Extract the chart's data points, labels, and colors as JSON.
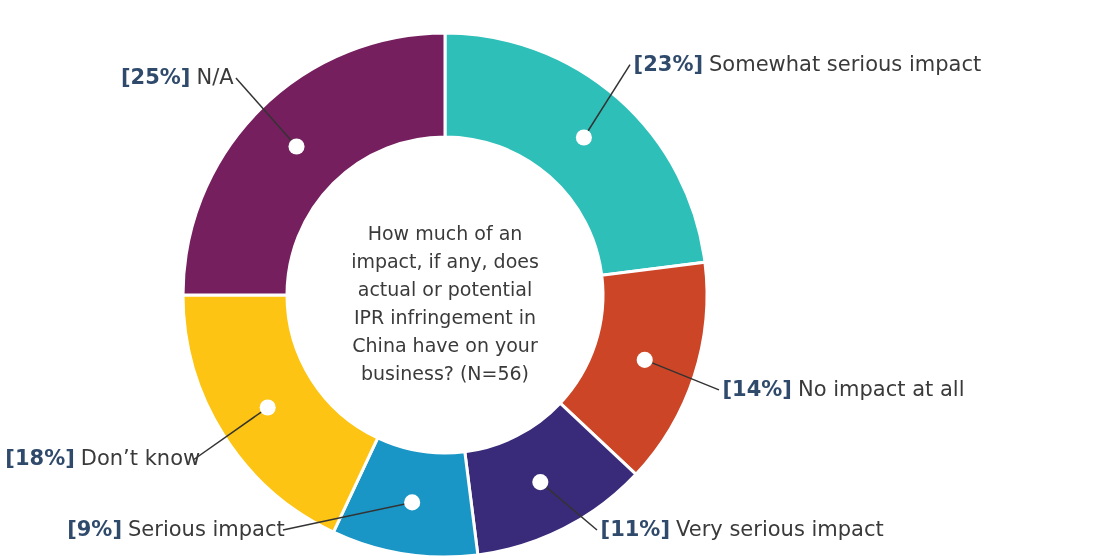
{
  "chart_data": {
    "type": "donut",
    "title": "How much of an impact, if any, does actual or potential IPR infringement in China have on your business? (N=56)",
    "categories": [
      "Somewhat serious impact",
      "No impact at all",
      "Very serious impact",
      "Serious impact",
      "Don’t know",
      "N/A"
    ],
    "values": [
      23,
      14,
      11,
      9,
      18,
      25
    ],
    "colors": [
      "#2ebfb9",
      "#cc4526",
      "#3a2a7a",
      "#1a96c6",
      "#fdc414",
      "#761f5e"
    ],
    "value_labels": [
      "[23%]",
      "[14%]",
      "[11%]",
      "[9%]",
      "[18%]",
      "[25%]"
    ]
  }
}
